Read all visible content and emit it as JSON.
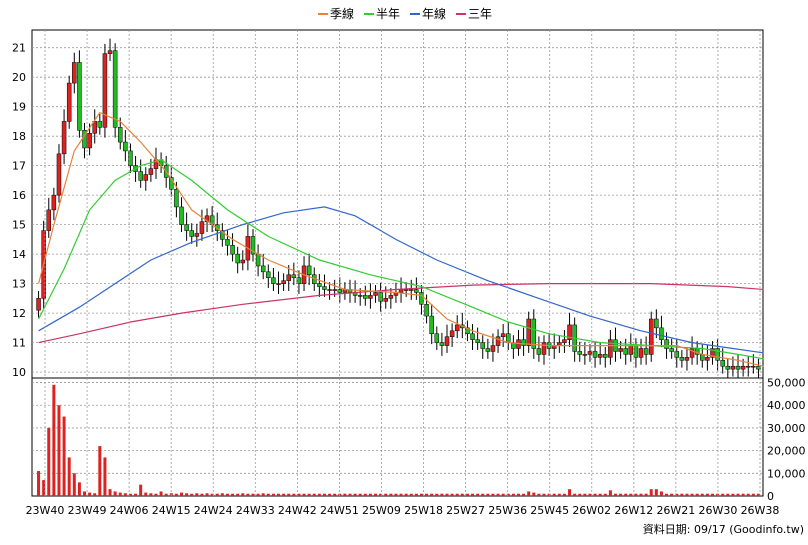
{
  "chart_data": {
    "type": "candlestick",
    "legend": [
      {
        "name": "季線",
        "color": "#e8823a"
      },
      {
        "name": "半年",
        "color": "#33cc33"
      },
      {
        "name": "年線",
        "color": "#3366cc"
      },
      {
        "name": "三年",
        "color": "#cc3366"
      }
    ],
    "price_axis": {
      "ticks": [
        "21",
        "20",
        "19",
        "18",
        "17",
        "16",
        "15",
        "14",
        "13",
        "12",
        "11",
        "10"
      ],
      "ylim": [
        9.8,
        21.6
      ]
    },
    "volume_axis": {
      "ticks": [
        "50,000",
        "40,000",
        "30,000",
        "20,000",
        "10,000",
        "0"
      ],
      "ylim": [
        0,
        52000
      ]
    },
    "x_ticks": [
      "23W40",
      "23W49",
      "24W06",
      "24W15",
      "24W24",
      "24W33",
      "24W42",
      "24W51",
      "25W09",
      "25W18",
      "25W27",
      "25W36",
      "25W45",
      "26W02",
      "26W12",
      "26W21",
      "26W30",
      "26W38"
    ],
    "colors": {
      "up": "#dd2222",
      "down": "#22bb22",
      "volume": "#dd2222",
      "grid": "#999999"
    },
    "source": "資料日期: 09/17  (Goodinfo.tw)",
    "week_closes": [
      12.5,
      14.8,
      15.5,
      16.0,
      17.4,
      18.5,
      19.8,
      20.5,
      18.2,
      17.6,
      18.1,
      18.5,
      18.3,
      20.8,
      20.9,
      18.3,
      17.8,
      17.5,
      17.0,
      16.8,
      16.5,
      16.7,
      16.9,
      17.2,
      17.0,
      16.6,
      16.2,
      15.6,
      15.0,
      14.8,
      14.6,
      14.7,
      15.1,
      15.3,
      15.0,
      14.8,
      14.5,
      14.3,
      14.0,
      13.7,
      13.8,
      14.6,
      14.0,
      13.6,
      13.4,
      13.2,
      13.0,
      13.0,
      13.1,
      13.3,
      13.2,
      13.0,
      13.6,
      13.3,
      13.0,
      12.9,
      12.8,
      12.8,
      12.8,
      12.7,
      12.8,
      12.7,
      12.6,
      12.6,
      12.5,
      12.6,
      12.7,
      12.4,
      12.5,
      12.6,
      12.7,
      12.8,
      12.8,
      12.8,
      12.7,
      12.3,
      11.9,
      11.3,
      11.0,
      10.9,
      11.2,
      11.4,
      11.6,
      11.5,
      11.3,
      11.1,
      11.0,
      10.8,
      10.7,
      10.9,
      11.2,
      11.3,
      11.0,
      10.8,
      11.1,
      10.9,
      11.8,
      10.8,
      10.6,
      11.0,
      10.8,
      10.9,
      11.0,
      11.1,
      11.6,
      10.7,
      10.6,
      10.6,
      10.7,
      10.5,
      10.6,
      10.5,
      11.1,
      10.7,
      10.8,
      10.6,
      10.9,
      10.5,
      10.8,
      10.6,
      11.8,
      11.5,
      11.1,
      10.8,
      10.7,
      10.5,
      10.4,
      10.5,
      10.8,
      10.6,
      10.4,
      10.5,
      10.8,
      10.4,
      10.2,
      10.1,
      10.2,
      10.1,
      10.2,
      10.2,
      10.2,
      10.1
    ],
    "week_volumes": [
      11000,
      7000,
      30000,
      49000,
      40000,
      35000,
      17000,
      10000,
      6000,
      2000,
      1500,
      1200,
      22000,
      17000,
      3000,
      2000,
      1500,
      1200,
      1000,
      1000,
      5000,
      1500,
      1200,
      1000,
      2000,
      1000,
      1200,
      1000,
      1500,
      1200,
      1000,
      1200,
      1000,
      1200,
      1000,
      1000,
      1200,
      1000,
      1000,
      1000,
      1200,
      1000,
      1000,
      1000,
      1200,
      1000,
      1000,
      1000,
      1000,
      1000,
      1000,
      1000,
      1000,
      1000,
      1000,
      1000,
      1000,
      1000,
      1000,
      1000,
      1000,
      1000,
      1000,
      1000,
      1000,
      1000,
      1000,
      1000,
      1000,
      1000,
      1000,
      1000,
      1000,
      1000,
      1000,
      1000,
      1000,
      1000,
      1000,
      1000,
      1000,
      1000,
      1000,
      1000,
      1000,
      1000,
      1000,
      1000,
      1000,
      1000,
      1000,
      1000,
      1000,
      1000,
      1000,
      1000,
      2000,
      1500,
      1000,
      1000,
      1000,
      1000,
      1000,
      1000,
      3000,
      1000,
      1000,
      1000,
      1000,
      1000,
      1000,
      1000,
      2500,
      1000,
      1000,
      1000,
      1000,
      1000,
      1000,
      1000,
      3000,
      3000,
      2000,
      1000,
      1000,
      1000,
      1000,
      1000,
      1000,
      1000,
      1000,
      1000,
      1000,
      1000,
      1000,
      1000,
      1000,
      1000,
      1000,
      1000,
      1000,
      1000
    ],
    "ma_quarter": [
      [
        0,
        13.0
      ],
      [
        3,
        15.0
      ],
      [
        7,
        17.5
      ],
      [
        12,
        18.8
      ],
      [
        16,
        18.5
      ],
      [
        20,
        17.8
      ],
      [
        25,
        16.8
      ],
      [
        30,
        15.5
      ],
      [
        38,
        14.5
      ],
      [
        45,
        13.8
      ],
      [
        52,
        13.3
      ],
      [
        60,
        12.8
      ],
      [
        70,
        12.7
      ],
      [
        75,
        12.6
      ],
      [
        80,
        11.8
      ],
      [
        85,
        11.4
      ],
      [
        92,
        11.0
      ],
      [
        100,
        10.9
      ],
      [
        110,
        10.9
      ],
      [
        120,
        10.9
      ],
      [
        125,
        10.9
      ],
      [
        130,
        10.6
      ],
      [
        137,
        10.4
      ],
      [
        142,
        10.2
      ]
    ],
    "ma_halfyear": [
      [
        0,
        11.8
      ],
      [
        5,
        13.5
      ],
      [
        10,
        15.5
      ],
      [
        15,
        16.5
      ],
      [
        20,
        17.0
      ],
      [
        24,
        17.2
      ],
      [
        30,
        16.5
      ],
      [
        37,
        15.5
      ],
      [
        45,
        14.6
      ],
      [
        55,
        13.8
      ],
      [
        65,
        13.3
      ],
      [
        75,
        12.9
      ],
      [
        85,
        12.2
      ],
      [
        92,
        11.7
      ],
      [
        100,
        11.3
      ],
      [
        110,
        11.0
      ],
      [
        120,
        10.9
      ],
      [
        130,
        10.8
      ],
      [
        137,
        10.6
      ],
      [
        142,
        10.45
      ]
    ],
    "ma_year": [
      [
        0,
        11.4
      ],
      [
        8,
        12.2
      ],
      [
        15,
        13.0
      ],
      [
        22,
        13.8
      ],
      [
        30,
        14.4
      ],
      [
        40,
        15.0
      ],
      [
        48,
        15.4
      ],
      [
        56,
        15.6
      ],
      [
        62,
        15.3
      ],
      [
        70,
        14.5
      ],
      [
        78,
        13.8
      ],
      [
        88,
        13.1
      ],
      [
        98,
        12.5
      ],
      [
        108,
        11.9
      ],
      [
        118,
        11.4
      ],
      [
        128,
        11.0
      ],
      [
        136,
        10.8
      ],
      [
        142,
        10.65
      ]
    ],
    "ma_3year": [
      [
        0,
        11.0
      ],
      [
        8,
        11.3
      ],
      [
        18,
        11.7
      ],
      [
        28,
        12.0
      ],
      [
        40,
        12.3
      ],
      [
        55,
        12.6
      ],
      [
        70,
        12.8
      ],
      [
        85,
        12.95
      ],
      [
        100,
        13.0
      ],
      [
        120,
        13.0
      ],
      [
        135,
        12.9
      ],
      [
        142,
        12.8
      ]
    ]
  }
}
